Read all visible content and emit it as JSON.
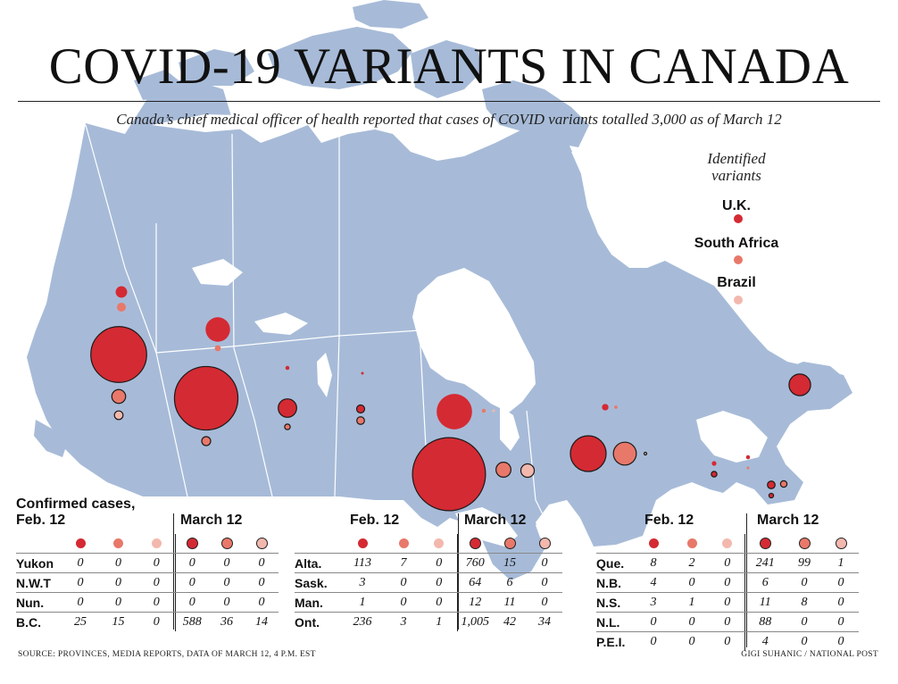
{
  "title": "COVID-19 VARIANTS IN CANADA",
  "subtitle": "Canada’s chief medical officer of health reported that cases of COVID variants totalled 3,000 as of March 12",
  "legend": {
    "title": "Identified variants",
    "items": [
      {
        "label": "U.K.",
        "color": "#d42a33"
      },
      {
        "label": "South Africa",
        "color": "#e8786a"
      },
      {
        "label": "Brazil",
        "color": "#f3b8ad"
      }
    ]
  },
  "colors": {
    "map": "#a7bbd8",
    "water": "#ffffff",
    "border": "#ffffff"
  },
  "headers": {
    "confirmed": "Confirmed cases,",
    "feb": "Feb. 12",
    "march": "March 12"
  },
  "chart_data": {
    "type": "table",
    "title": "Confirmed cases of COVID-19 variants by province",
    "columns": [
      "U.K.",
      "South Africa",
      "Brazil"
    ],
    "periods": [
      "Feb. 12",
      "March 12"
    ],
    "tables": [
      {
        "rows": [
          {
            "name": "Yukon",
            "feb": [
              "0",
              "0",
              "0"
            ],
            "mar": [
              "0",
              "0",
              "0"
            ]
          },
          {
            "name": "N.W.T",
            "feb": [
              "0",
              "0",
              "0"
            ],
            "mar": [
              "0",
              "0",
              "0"
            ]
          },
          {
            "name": "Nun.",
            "feb": [
              "0",
              "0",
              "0"
            ],
            "mar": [
              "0",
              "0",
              "0"
            ]
          },
          {
            "name": "B.C.",
            "feb": [
              "25",
              "15",
              "0"
            ],
            "mar": [
              "588",
              "36",
              "14"
            ]
          }
        ]
      },
      {
        "rows": [
          {
            "name": "Alta.",
            "feb": [
              "113",
              "7",
              "0"
            ],
            "mar": [
              "760",
              "15",
              "0"
            ]
          },
          {
            "name": "Sask.",
            "feb": [
              "3",
              "0",
              "0"
            ],
            "mar": [
              "64",
              "6",
              "0"
            ]
          },
          {
            "name": "Man.",
            "feb": [
              "1",
              "0",
              "0"
            ],
            "mar": [
              "12",
              "11",
              "0"
            ]
          },
          {
            "name": "Ont.",
            "feb": [
              "236",
              "3",
              "1"
            ],
            "mar": [
              "1,005",
              "42",
              "34"
            ]
          }
        ]
      },
      {
        "rows": [
          {
            "name": "Que.",
            "feb": [
              "8",
              "2",
              "0"
            ],
            "mar": [
              "241",
              "99",
              "1"
            ]
          },
          {
            "name": "N.B.",
            "feb": [
              "4",
              "0",
              "0"
            ],
            "mar": [
              "6",
              "0",
              "0"
            ]
          },
          {
            "name": "N.S.",
            "feb": [
              "3",
              "1",
              "0"
            ],
            "mar": [
              "11",
              "8",
              "0"
            ]
          },
          {
            "name": "N.L.",
            "feb": [
              "0",
              "0",
              "0"
            ],
            "mar": [
              "88",
              "0",
              "0"
            ]
          },
          {
            "name": "P.E.I.",
            "feb": [
              "0",
              "0",
              "0"
            ],
            "mar": [
              "4",
              "0",
              "0"
            ]
          }
        ]
      }
    ],
    "map_bubbles": [
      {
        "province": "B.C.",
        "period": "March 12",
        "variant": "U.K.",
        "value": 588
      },
      {
        "province": "B.C.",
        "period": "March 12",
        "variant": "South Africa",
        "value": 36
      },
      {
        "province": "B.C.",
        "period": "March 12",
        "variant": "Brazil",
        "value": 14
      },
      {
        "province": "B.C.",
        "period": "Feb. 12",
        "variant": "U.K.",
        "value": 25
      },
      {
        "province": "B.C.",
        "period": "Feb. 12",
        "variant": "South Africa",
        "value": 15
      },
      {
        "province": "Alta.",
        "period": "March 12",
        "variant": "U.K.",
        "value": 760
      },
      {
        "province": "Alta.",
        "period": "March 12",
        "variant": "South Africa",
        "value": 15
      },
      {
        "province": "Alta.",
        "period": "Feb. 12",
        "variant": "U.K.",
        "value": 113
      },
      {
        "province": "Alta.",
        "period": "Feb. 12",
        "variant": "South Africa",
        "value": 7
      },
      {
        "province": "Sask.",
        "period": "March 12",
        "variant": "U.K.",
        "value": 64
      },
      {
        "province": "Sask.",
        "period": "March 12",
        "variant": "South Africa",
        "value": 6
      },
      {
        "province": "Sask.",
        "period": "Feb. 12",
        "variant": "U.K.",
        "value": 3
      },
      {
        "province": "Man.",
        "period": "March 12",
        "variant": "U.K.",
        "value": 12
      },
      {
        "province": "Man.",
        "period": "March 12",
        "variant": "South Africa",
        "value": 11
      },
      {
        "province": "Man.",
        "period": "Feb. 12",
        "variant": "U.K.",
        "value": 1
      },
      {
        "province": "Ont.",
        "period": "March 12",
        "variant": "U.K.",
        "value": 1005
      },
      {
        "province": "Ont.",
        "period": "March 12",
        "variant": "South Africa",
        "value": 42
      },
      {
        "province": "Ont.",
        "period": "March 12",
        "variant": "Brazil",
        "value": 34
      },
      {
        "province": "Ont.",
        "period": "Feb. 12",
        "variant": "U.K.",
        "value": 236
      },
      {
        "province": "Ont.",
        "period": "Feb. 12",
        "variant": "South Africa",
        "value": 3
      },
      {
        "province": "Ont.",
        "period": "Feb. 12",
        "variant": "Brazil",
        "value": 1
      },
      {
        "province": "Que.",
        "period": "March 12",
        "variant": "U.K.",
        "value": 241
      },
      {
        "province": "Que.",
        "period": "March 12",
        "variant": "South Africa",
        "value": 99
      },
      {
        "province": "Que.",
        "period": "March 12",
        "variant": "Brazil",
        "value": 1
      },
      {
        "province": "Que.",
        "period": "Feb. 12",
        "variant": "U.K.",
        "value": 8
      },
      {
        "province": "Que.",
        "period": "Feb. 12",
        "variant": "South Africa",
        "value": 2
      },
      {
        "province": "N.B.",
        "period": "March 12",
        "variant": "U.K.",
        "value": 6
      },
      {
        "province": "N.B.",
        "period": "Feb. 12",
        "variant": "U.K.",
        "value": 4
      },
      {
        "province": "N.S.",
        "period": "March 12",
        "variant": "U.K.",
        "value": 11
      },
      {
        "province": "N.S.",
        "period": "March 12",
        "variant": "South Africa",
        "value": 8
      },
      {
        "province": "N.S.",
        "period": "Feb. 12",
        "variant": "U.K.",
        "value": 3
      },
      {
        "province": "N.S.",
        "period": "Feb. 12",
        "variant": "South Africa",
        "value": 1
      },
      {
        "province": "N.L.",
        "period": "March 12",
        "variant": "U.K.",
        "value": 88
      },
      {
        "province": "P.E.I.",
        "period": "March 12",
        "variant": "U.K.",
        "value": 4
      }
    ]
  },
  "footer": {
    "source": "SOURCE: PROVINCES, MEDIA REPORTS, DATA OF MARCH 12, 4 P.M. EST",
    "credit": "GIGI SUHANIC / NATIONAL POST"
  }
}
